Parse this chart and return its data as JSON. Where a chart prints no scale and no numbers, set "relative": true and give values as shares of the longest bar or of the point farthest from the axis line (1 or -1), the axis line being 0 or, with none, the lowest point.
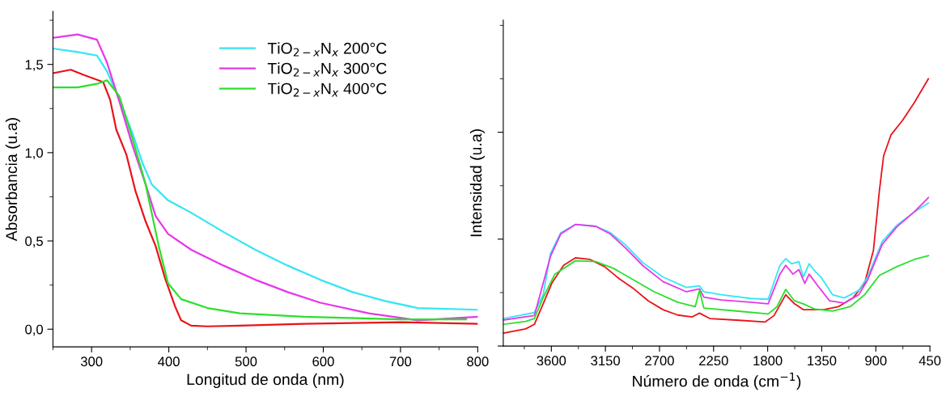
{
  "chart_data": [
    {
      "type": "line",
      "xlabel": "Longitud de onda (nm)",
      "ylabel": "Absorbancia (u.a)",
      "xlim": [
        250,
        800
      ],
      "ylim": [
        -0.1,
        1.8
      ],
      "xticks": [
        300,
        400,
        500,
        600,
        700,
        800
      ],
      "yticks": [
        {
          "value": 0,
          "label": "0,0"
        },
        {
          "value": 0.5,
          "label": "0,5"
        },
        {
          "value": 1.0,
          "label": "1,0"
        },
        {
          "value": 1.5,
          "label": "1,5"
        }
      ],
      "grid": false,
      "legend": "top right",
      "marker": "none",
      "line_style": "solid",
      "series": [
        {
          "color": "#e8141a",
          "x": [
            250,
            273,
            290,
            315,
            324,
            332,
            345,
            357,
            370,
            383,
            395,
            408,
            416,
            429,
            450,
            492,
            575,
            701,
            800
          ],
          "values": [
            1.45,
            1.47,
            1.44,
            1.4,
            1.3,
            1.13,
            0.99,
            0.78,
            0.61,
            0.47,
            0.29,
            0.13,
            0.05,
            0.02,
            0.016,
            0.02,
            0.03,
            0.04,
            0.03
          ]
        },
        {
          "name": "TiO$_{2−x}$N$_{x}$ 200°C",
          "color": "#33e6f5",
          "x": [
            250,
            282,
            307,
            320,
            336,
            353,
            366,
            378,
            399,
            429,
            471,
            512,
            554,
            596,
            638,
            680,
            722,
            800
          ],
          "values": [
            1.59,
            1.57,
            1.55,
            1.46,
            1.3,
            1.11,
            0.94,
            0.82,
            0.73,
            0.66,
            0.55,
            0.45,
            0.36,
            0.28,
            0.21,
            0.16,
            0.12,
            0.11
          ]
        },
        {
          "name": "TiO$_{2−x}$N$_{x}$ 300°C",
          "color": "#e836e8",
          "x": [
            250,
            282,
            307,
            320,
            336,
            353,
            370,
            383,
            399,
            429,
            471,
            512,
            554,
            596,
            659,
            722,
            800
          ],
          "values": [
            1.65,
            1.67,
            1.64,
            1.51,
            1.29,
            1.04,
            0.82,
            0.64,
            0.54,
            0.45,
            0.36,
            0.28,
            0.21,
            0.15,
            0.09,
            0.05,
            0.07
          ]
        },
        {
          "name": "TiO$_{2−x}$N$_{x}$ 400°C",
          "color": "#2be02b",
          "x": [
            250,
            282,
            307,
            320,
            336,
            353,
            370,
            387,
            399,
            416,
            450,
            492,
            575,
            701,
            785
          ],
          "values": [
            1.37,
            1.37,
            1.39,
            1.41,
            1.32,
            1.08,
            0.82,
            0.47,
            0.26,
            0.17,
            0.12,
            0.09,
            0.07,
            0.056,
            0.056
          ]
        }
      ]
    },
    {
      "type": "line",
      "xlabel": "Número de onda (cm$^{−1}$)",
      "ylabel": "Intensidad (u.a)",
      "xlim": [
        4000,
        450
      ],
      "xticks": [
        3600,
        3150,
        2700,
        2250,
        1800,
        1350,
        900,
        450
      ],
      "relative": true,
      "tick_labels": "x",
      "grid": false,
      "legend": false,
      "marker": "none",
      "line_style": "solid",
      "series": [
        {
          "color": "#e8141a",
          "x": [
            4000,
            3814,
            3741,
            3668,
            3595,
            3498,
            3400,
            3279,
            3157,
            3036,
            2914,
            2793,
            2671,
            2549,
            2428,
            2367,
            2282,
            2063,
            1820,
            1747,
            1650,
            1577,
            1504,
            1333,
            1212,
            1090,
            993,
            920,
            871,
            835,
            774,
            677,
            580,
            463
          ],
          "values": [
            0.048,
            0.064,
            0.081,
            0.158,
            0.236,
            0.302,
            0.33,
            0.324,
            0.297,
            0.252,
            0.214,
            0.169,
            0.136,
            0.116,
            0.109,
            0.123,
            0.103,
            0.097,
            0.09,
            0.114,
            0.192,
            0.158,
            0.136,
            0.136,
            0.147,
            0.18,
            0.236,
            0.358,
            0.579,
            0.712,
            0.79,
            0.845,
            0.911,
            1.0
          ]
        },
        {
          "color": "#33e6f5",
          "x": [
            4000,
            3741,
            3668,
            3607,
            3522,
            3400,
            3230,
            3109,
            2987,
            2841,
            2671,
            2476,
            2367,
            2331,
            2185,
            1941,
            1796,
            1698,
            1650,
            1601,
            1540,
            1504,
            1455,
            1406,
            1357,
            1260,
            1163,
            1042,
            969,
            847,
            725,
            580,
            463
          ],
          "values": [
            0.103,
            0.125,
            0.192,
            0.347,
            0.424,
            0.455,
            0.448,
            0.424,
            0.38,
            0.313,
            0.258,
            0.219,
            0.225,
            0.203,
            0.192,
            0.178,
            0.175,
            0.302,
            0.327,
            0.308,
            0.316,
            0.258,
            0.308,
            0.28,
            0.258,
            0.192,
            0.18,
            0.208,
            0.258,
            0.391,
            0.452,
            0.502,
            0.535
          ]
        },
        {
          "color": "#e836e8",
          "x": [
            4000,
            3741,
            3607,
            3522,
            3400,
            3230,
            3109,
            2987,
            2841,
            2671,
            2476,
            2367,
            2331,
            2185,
            1941,
            1796,
            1698,
            1650,
            1589,
            1540,
            1491,
            1455,
            1382,
            1285,
            1163,
            1042,
            969,
            847,
            725,
            580,
            463
          ],
          "values": [
            0.097,
            0.114,
            0.336,
            0.419,
            0.455,
            0.448,
            0.419,
            0.369,
            0.302,
            0.241,
            0.203,
            0.214,
            0.183,
            0.172,
            0.164,
            0.158,
            0.269,
            0.302,
            0.269,
            0.286,
            0.234,
            0.269,
            0.225,
            0.169,
            0.161,
            0.192,
            0.247,
            0.38,
            0.446,
            0.502,
            0.555
          ]
        },
        {
          "color": "#2be02b",
          "x": [
            4000,
            3814,
            3741,
            3668,
            3571,
            3400,
            3230,
            3084,
            2914,
            2744,
            2549,
            2403,
            2367,
            2331,
            2063,
            1796,
            1723,
            1650,
            1577,
            1504,
            1406,
            1260,
            1114,
            993,
            871,
            725,
            580,
            463
          ],
          "values": [
            0.081,
            0.092,
            0.103,
            0.181,
            0.269,
            0.319,
            0.316,
            0.291,
            0.247,
            0.203,
            0.164,
            0.147,
            0.208,
            0.142,
            0.131,
            0.12,
            0.147,
            0.212,
            0.169,
            0.158,
            0.138,
            0.131,
            0.147,
            0.192,
            0.264,
            0.297,
            0.324,
            0.338
          ]
        }
      ]
    }
  ]
}
